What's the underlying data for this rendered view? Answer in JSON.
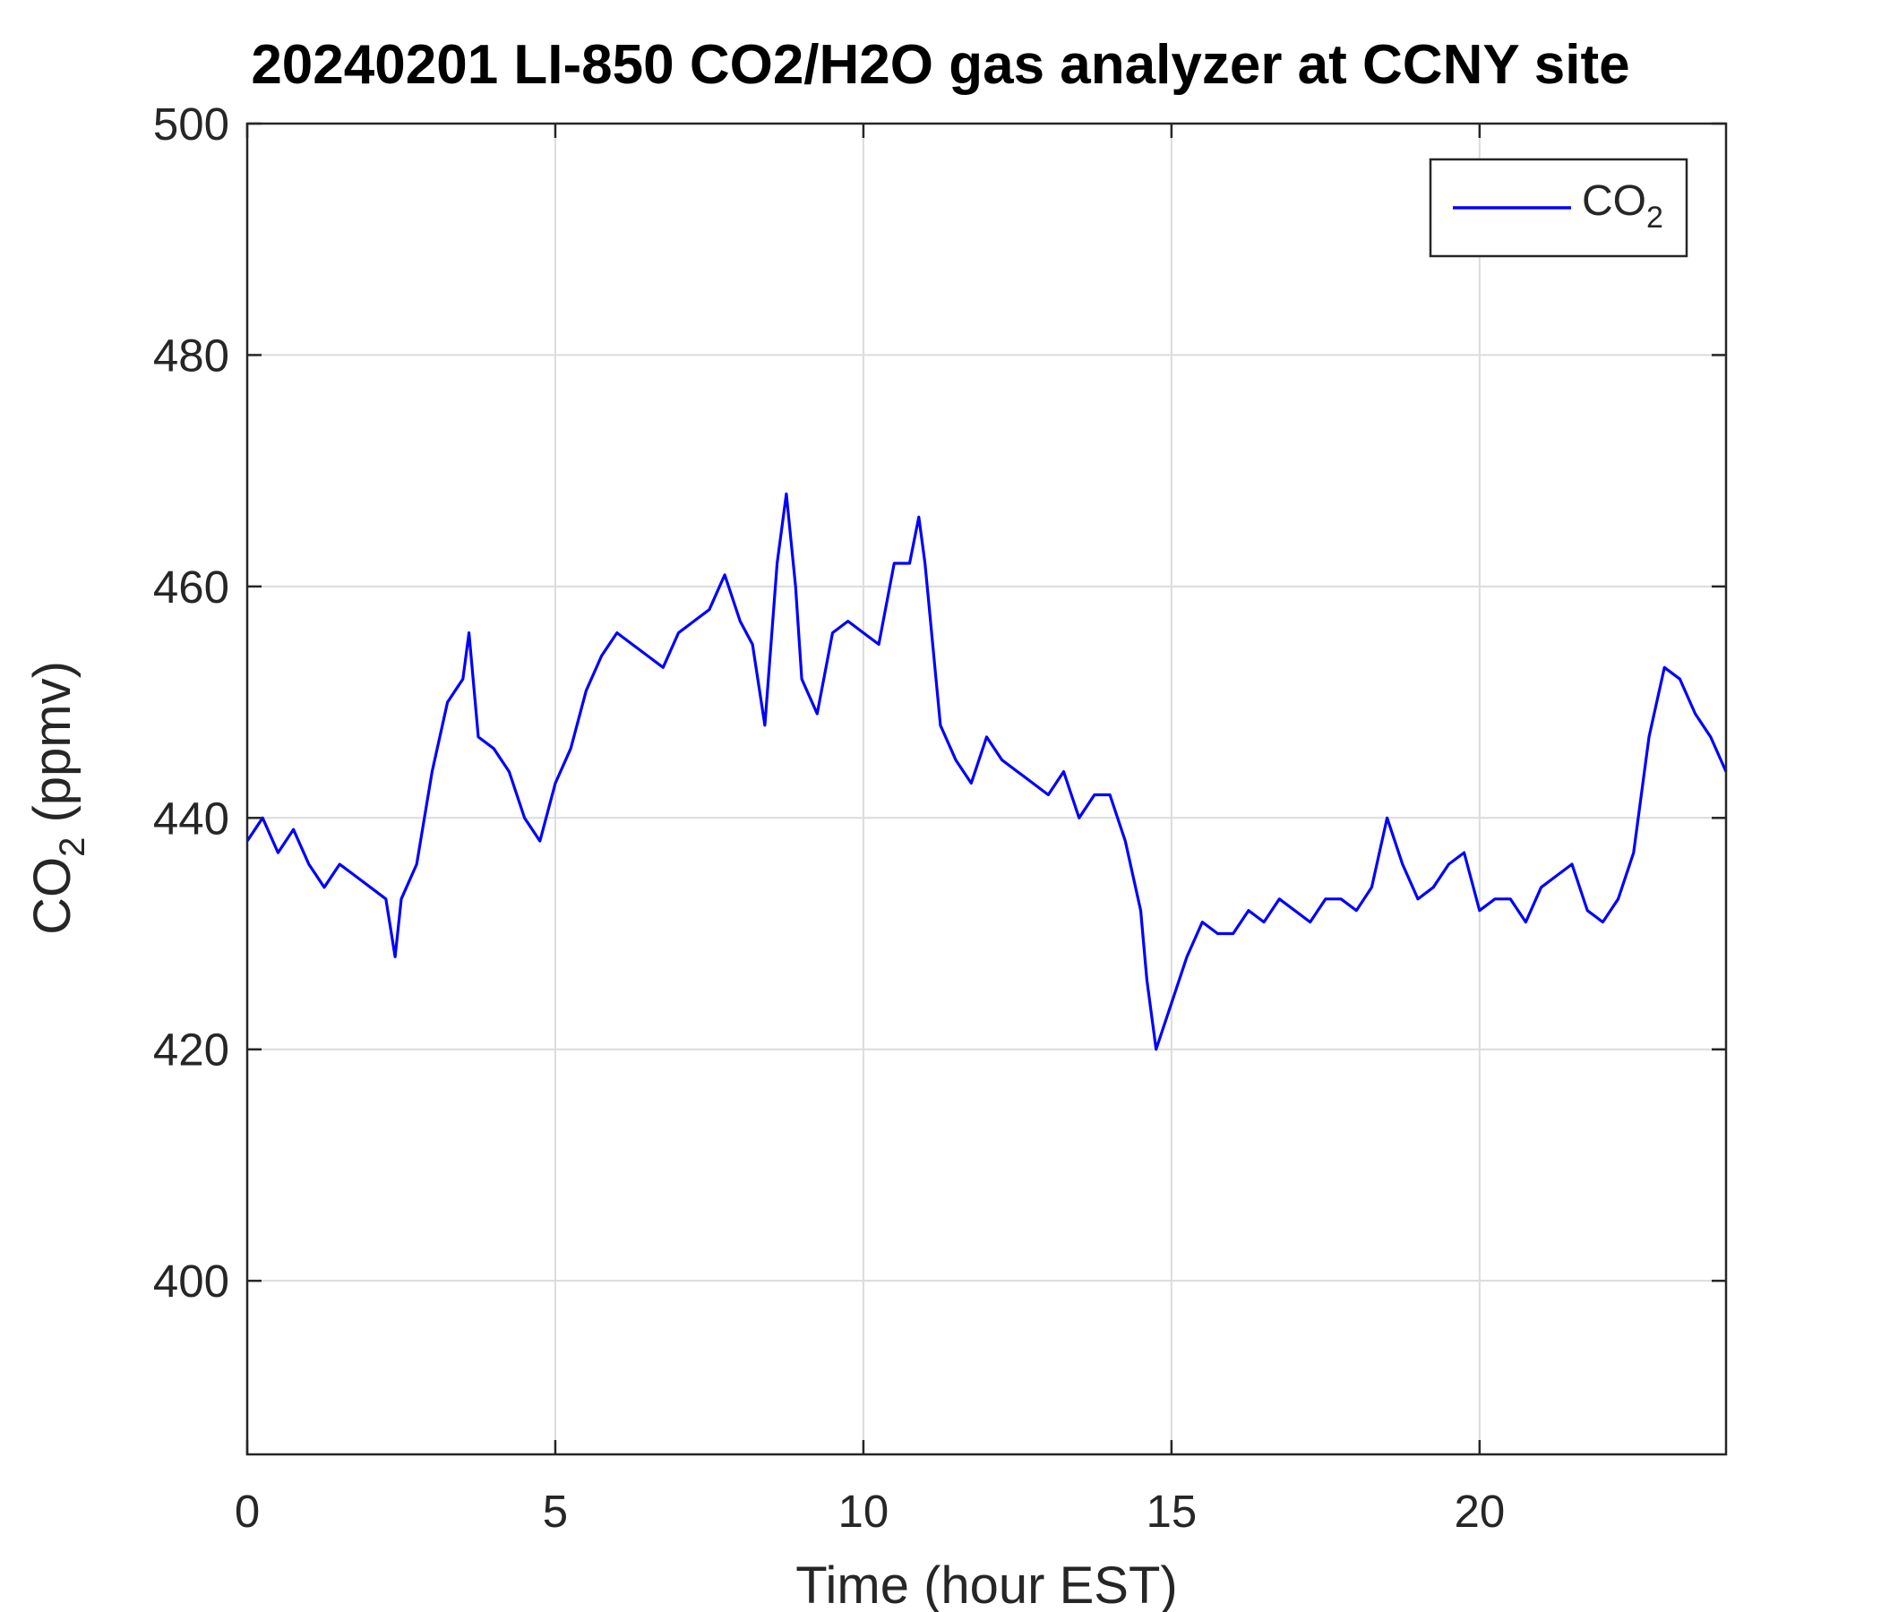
{
  "chart_data": {
    "type": "line",
    "title": "20240201 LI-850 CO2/H2O gas analyzer at CCNY site",
    "xlabel": "Time (hour EST)",
    "ylabel": {
      "main": "CO",
      "subscript": "2",
      "suffix": " (ppmv)"
    },
    "xlim": [
      0,
      24
    ],
    "ylim": [
      385,
      500
    ],
    "xticks": [
      0,
      5,
      10,
      15,
      20
    ],
    "yticks": [
      400,
      420,
      440,
      460,
      480,
      500
    ],
    "grid": true,
    "legend_position": "top-right",
    "series": [
      {
        "name": {
          "main": "CO",
          "subscript": "2"
        },
        "color": "#0000ff",
        "x": [
          0,
          0.25,
          0.5,
          0.75,
          1.0,
          1.25,
          1.5,
          1.75,
          2.0,
          2.25,
          2.4,
          2.5,
          2.75,
          3.0,
          3.25,
          3.5,
          3.6,
          3.75,
          4.0,
          4.25,
          4.5,
          4.75,
          5.0,
          5.25,
          5.5,
          5.75,
          6.0,
          6.25,
          6.5,
          6.75,
          7.0,
          7.25,
          7.5,
          7.75,
          8.0,
          8.2,
          8.4,
          8.6,
          8.75,
          8.9,
          9.0,
          9.25,
          9.5,
          9.75,
          10.0,
          10.25,
          10.5,
          10.75,
          10.9,
          11.0,
          11.25,
          11.5,
          11.75,
          12.0,
          12.25,
          12.5,
          12.75,
          13.0,
          13.25,
          13.5,
          13.75,
          14.0,
          14.25,
          14.5,
          14.6,
          14.75,
          15.0,
          15.25,
          15.5,
          15.75,
          16.0,
          16.25,
          16.5,
          16.75,
          17.0,
          17.25,
          17.5,
          17.75,
          18.0,
          18.25,
          18.5,
          18.75,
          19.0,
          19.25,
          19.5,
          19.75,
          20.0,
          20.25,
          20.5,
          20.75,
          21.0,
          21.25,
          21.5,
          21.75,
          22.0,
          22.25,
          22.5,
          22.75,
          23.0,
          23.25,
          23.5,
          23.75,
          24.0
        ],
        "y": [
          438,
          440,
          437,
          439,
          436,
          434,
          436,
          435,
          434,
          433,
          428,
          433,
          436,
          444,
          450,
          452,
          456,
          447,
          446,
          444,
          440,
          438,
          443,
          446,
          451,
          454,
          456,
          455,
          454,
          453,
          456,
          457,
          458,
          461,
          457,
          455,
          448,
          462,
          468,
          460,
          452,
          449,
          456,
          457,
          456,
          455,
          462,
          462,
          466,
          462,
          448,
          445,
          443,
          447,
          445,
          444,
          443,
          442,
          444,
          440,
          442,
          442,
          438,
          432,
          426,
          420,
          424,
          428,
          431,
          430,
          430,
          432,
          431,
          433,
          432,
          431,
          433,
          433,
          432,
          434,
          440,
          436,
          433,
          434,
          436,
          437,
          432,
          433,
          433,
          431,
          434,
          435,
          436,
          432,
          431,
          433,
          437,
          447,
          453,
          452,
          449,
          447,
          444
        ]
      }
    ]
  }
}
